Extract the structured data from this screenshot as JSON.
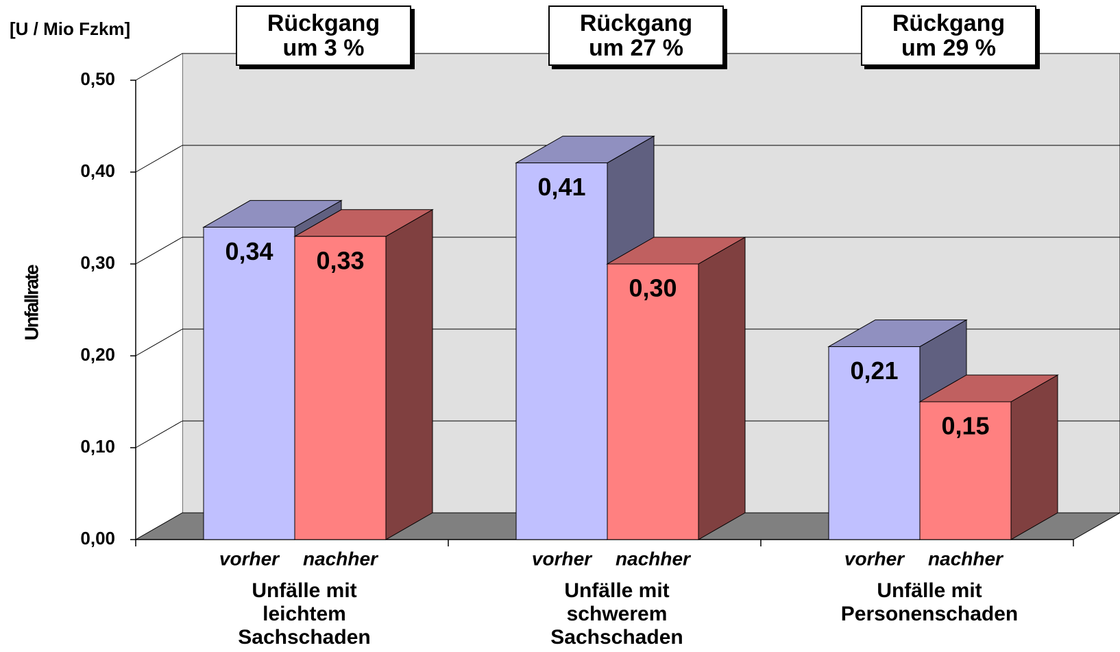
{
  "chart_data": {
    "type": "bar3d",
    "y_unit": "[U / Mio Fzkm]",
    "y_label": "Unfallrate",
    "categories": [
      "Unfälle mit\nleichtem\nSachschaden",
      "Unfälle mit\nschwerem\nSachschaden",
      "Unfälle mit\nPersonenschaden"
    ],
    "annotations": [
      "Rückgang\num 3 %",
      "Rückgang\num 27 %",
      "Rückgang\num 29 %"
    ],
    "series": [
      {
        "name": "vorher",
        "color": "#c0c0ff",
        "top_color": "#9090c0",
        "side_color": "#606080",
        "values": [
          0.34,
          0.41,
          0.21
        ],
        "value_labels": [
          "0,34",
          "0,41",
          "0,21"
        ]
      },
      {
        "name": "nachher",
        "color": "#ff8080",
        "top_color": "#c06060",
        "side_color": "#804040",
        "values": [
          0.33,
          0.3,
          0.15
        ],
        "value_labels": [
          "0,33",
          "0,30",
          "0,15"
        ]
      }
    ],
    "ylim": [
      0,
      0.5
    ],
    "yticks": [
      {
        "value": 0,
        "label": "0,00"
      },
      {
        "value": 0.1,
        "label": "0,10"
      },
      {
        "value": 0.2,
        "label": "0,20"
      },
      {
        "value": 0.3,
        "label": "0,30"
      },
      {
        "value": 0.4,
        "label": "0,40"
      },
      {
        "value": 0.5,
        "label": "0,50"
      }
    ],
    "grid": true
  }
}
